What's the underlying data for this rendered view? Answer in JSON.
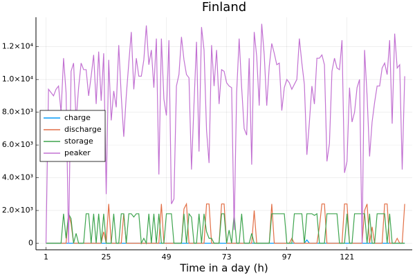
{
  "chart_data": {
    "type": "line",
    "title": "Finland",
    "x_label": "Time in a day (h)",
    "x": [
      1,
      2,
      3,
      4,
      5,
      6,
      7,
      8,
      9,
      10,
      11,
      12,
      13,
      14,
      15,
      16,
      17,
      18,
      19,
      20,
      21,
      22,
      23,
      24,
      25,
      26,
      27,
      28,
      29,
      30,
      31,
      32,
      33,
      34,
      35,
      36,
      37,
      38,
      39,
      40,
      41,
      42,
      43,
      44,
      45,
      46,
      47,
      48,
      49,
      50,
      51,
      52,
      53,
      54,
      55,
      56,
      57,
      58,
      59,
      60,
      61,
      62,
      63,
      64,
      65,
      66,
      67,
      68,
      69,
      70,
      71,
      72,
      73,
      74,
      75,
      76,
      77,
      78,
      79,
      80,
      81,
      82,
      83,
      84,
      85,
      86,
      87,
      88,
      89,
      90,
      91,
      92,
      93,
      94,
      95,
      96,
      97,
      98,
      99,
      100,
      101,
      102,
      103,
      104,
      105,
      106,
      107,
      108,
      109,
      110,
      111,
      112,
      113,
      114,
      115,
      116,
      117,
      118,
      119,
      120,
      121,
      122,
      123,
      124,
      125,
      126,
      127,
      128,
      129,
      130,
      131,
      132,
      133,
      134,
      135,
      136,
      137,
      138,
      139,
      140,
      141,
      142,
      143,
      144
    ],
    "series": [
      {
        "name": "charge",
        "color": "#009af9",
        "values": [
          0,
          0,
          0,
          0,
          0,
          0,
          0,
          0,
          0,
          0,
          0,
          0,
          0,
          0,
          0,
          0,
          0,
          0,
          0,
          0,
          0,
          0,
          0,
          0,
          0,
          0,
          0,
          0,
          0,
          0,
          0,
          0,
          0,
          0,
          0,
          0,
          0,
          0,
          0,
          0,
          0,
          0,
          0,
          0,
          0,
          0,
          0,
          0,
          0,
          0,
          0,
          0,
          0,
          0,
          0,
          0,
          0,
          0,
          0,
          0,
          0,
          0,
          0,
          0,
          0,
          0,
          0,
          0,
          0,
          0,
          0,
          0,
          0,
          0,
          0,
          0,
          0,
          0,
          0,
          0,
          0,
          0,
          0,
          0,
          0,
          0,
          0,
          0,
          0,
          0,
          0,
          0,
          0,
          0,
          0,
          0,
          0,
          0,
          0,
          0,
          0,
          0,
          0,
          0,
          200,
          0,
          0,
          0,
          0,
          0,
          0,
          0,
          0,
          0,
          0,
          0,
          0,
          0,
          0,
          0,
          0,
          0,
          0,
          0,
          0,
          0,
          0,
          0,
          0,
          0,
          0,
          0,
          0,
          0,
          0,
          0,
          0,
          0,
          0,
          0,
          0,
          0,
          0,
          0
        ]
      },
      {
        "name": "discharge",
        "color": "#e26f46",
        "values": [
          0,
          0,
          0,
          0,
          0,
          0,
          0,
          0,
          0,
          1800,
          1200,
          0,
          0,
          0,
          0,
          0,
          0,
          0,
          0,
          0,
          0,
          0,
          0,
          700,
          0,
          2400,
          0,
          0,
          0,
          0,
          0,
          1800,
          0,
          0,
          0,
          0,
          0,
          0,
          0,
          0,
          0,
          0,
          0,
          0,
          0,
          0,
          2400,
          0,
          0,
          0,
          0,
          0,
          0,
          0,
          0,
          2100,
          2400,
          0,
          0,
          0,
          0,
          0,
          0,
          0,
          2400,
          2400,
          0,
          0,
          0,
          0,
          2400,
          2400,
          0,
          0,
          0,
          0,
          0,
          0,
          0,
          0,
          0,
          0,
          0,
          2000,
          0,
          0,
          0,
          0,
          0,
          0,
          2400,
          0,
          0,
          0,
          0,
          0,
          0,
          0,
          300,
          0,
          0,
          0,
          0,
          0,
          0,
          0,
          0,
          0,
          0,
          1000,
          2400,
          2400,
          0,
          0,
          0,
          0,
          0,
          0,
          0,
          2400,
          2400,
          0,
          0,
          0,
          0,
          0,
          0,
          2000,
          2400,
          0,
          1000,
          0,
          0,
          0,
          0,
          2400,
          2400,
          0,
          0,
          0,
          300,
          0,
          0,
          2400
        ]
      },
      {
        "name": "storage",
        "color": "#3da44d",
        "values": [
          0,
          0,
          0,
          0,
          0,
          0,
          0,
          1800,
          300,
          1800,
          1500,
          0,
          600,
          0,
          0,
          0,
          1800,
          1800,
          0,
          1800,
          0,
          1800,
          0,
          1800,
          0,
          0,
          0,
          1800,
          0,
          0,
          1800,
          1800,
          0,
          1800,
          1800,
          1600,
          1800,
          1800,
          0,
          300,
          0,
          1800,
          0,
          1800,
          0,
          1800,
          0,
          0,
          1800,
          1800,
          1800,
          0,
          0,
          0,
          0,
          1800,
          0,
          1800,
          1600,
          0,
          0,
          1800,
          0,
          1800,
          700,
          300,
          300,
          0,
          0,
          0,
          1800,
          1800,
          0,
          800,
          0,
          1800,
          0,
          0,
          1800,
          0,
          0,
          0,
          600,
          0,
          0,
          0,
          0,
          0,
          0,
          0,
          1800,
          1800,
          1800,
          1800,
          1800,
          1800,
          0,
          0,
          0,
          1800,
          1800,
          1800,
          1800,
          0,
          1800,
          1800,
          1800,
          1700,
          1800,
          0,
          0,
          0,
          1800,
          1800,
          1800,
          1800,
          1800,
          0,
          0,
          0,
          1800,
          0,
          0,
          1800,
          1800,
          1800,
          1800,
          1800,
          0,
          1800,
          0,
          0,
          1800,
          1800,
          1800,
          1800,
          0,
          1800,
          0,
          0,
          0,
          0,
          0,
          0
        ]
      },
      {
        "name": "peaker",
        "color": "#c271d2",
        "values": [
          0,
          9400,
          9200,
          9000,
          9400,
          9600,
          8000,
          11300,
          9200,
          0,
          10500,
          11000,
          7500,
          9500,
          11000,
          10600,
          10600,
          9000,
          10200,
          11500,
          8500,
          11700,
          8700,
          11600,
          3000,
          11200,
          7500,
          9300,
          8300,
          12100,
          9000,
          6500,
          9000,
          11000,
          12900,
          9400,
          11300,
          10200,
          10200,
          11200,
          13300,
          10900,
          11800,
          9500,
          12500,
          4200,
          12500,
          8800,
          7800,
          12400,
          2400,
          2700,
          9600,
          10300,
          12600,
          11200,
          10300,
          10100,
          4500,
          8500,
          12300,
          5600,
          13200,
          11800,
          6900,
          4900,
          12100,
          9600,
          11800,
          8500,
          10600,
          10500,
          9800,
          9600,
          9500,
          800,
          9200,
          12500,
          9500,
          7000,
          6600,
          11300,
          4800,
          12900,
          11400,
          8400,
          13400,
          11500,
          8400,
          10800,
          12200,
          11600,
          10900,
          11000,
          8100,
          9500,
          10000,
          9800,
          9400,
          9700,
          10000,
          12500,
          11000,
          9700,
          5400,
          7400,
          9600,
          8500,
          11300,
          11300,
          11500,
          10900,
          5000,
          6100,
          10500,
          11300,
          10700,
          10600,
          12400,
          4300,
          5000,
          9500,
          7400,
          8000,
          9500,
          10000,
          0,
          11800,
          9000,
          5300,
          7400,
          8600,
          9600,
          9600,
          10700,
          11000,
          10300,
          12400,
          7300,
          12800,
          10700,
          10900,
          4500,
          10200
        ]
      }
    ],
    "xlim": [
      -3,
      147
    ],
    "xticks": [
      1,
      25,
      49,
      73,
      97,
      121
    ],
    "ylim": [
      -400,
      13800
    ],
    "yticks": [
      0,
      {
        "value": 2000,
        "label": "2.0×10³"
      },
      {
        "value": 4000,
        "label": "4.0×10³"
      },
      {
        "value": 6000,
        "label": "6.0×10³"
      },
      {
        "value": 8000,
        "label": "8.0×10³"
      },
      {
        "value": 10000,
        "label": "1.0×10⁴"
      },
      {
        "value": 12000,
        "label": "1.2×10⁴"
      }
    ],
    "grid": true,
    "legend": "left"
  }
}
